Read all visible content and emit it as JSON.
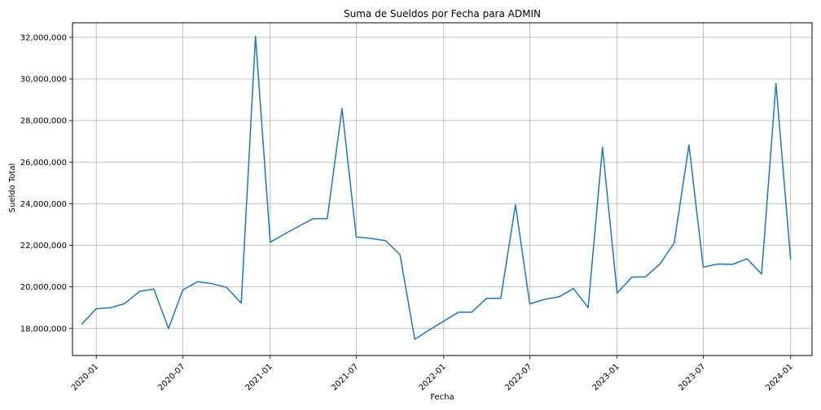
{
  "chart_data": {
    "type": "line",
    "title": "Suma de Sueldos por Fecha para ADMIN",
    "xlabel": "Fecha",
    "ylabel": "Sueldo Total",
    "ylim": [
      16700000,
      32700000
    ],
    "xlim": [
      "2019-11-12",
      "2024-02-15"
    ],
    "grid": true,
    "line_color": "#1f77b4",
    "x_ticks": [
      {
        "date": "2020-01-01",
        "label": "2020-01"
      },
      {
        "date": "2020-07-01",
        "label": "2020-07"
      },
      {
        "date": "2021-01-01",
        "label": "2021-01"
      },
      {
        "date": "2021-07-01",
        "label": "2021-07"
      },
      {
        "date": "2022-01-01",
        "label": "2022-01"
      },
      {
        "date": "2022-07-01",
        "label": "2022-07"
      },
      {
        "date": "2023-01-01",
        "label": "2023-01"
      },
      {
        "date": "2023-07-01",
        "label": "2023-07"
      },
      {
        "date": "2024-01-01",
        "label": "2024-01"
      }
    ],
    "y_ticks": [
      {
        "value": 18000000,
        "label": "18,000,000"
      },
      {
        "value": 20000000,
        "label": "20,000,000"
      },
      {
        "value": 22000000,
        "label": "22,000,000"
      },
      {
        "value": 24000000,
        "label": "24,000,000"
      },
      {
        "value": 26000000,
        "label": "26,000,000"
      },
      {
        "value": 28000000,
        "label": "28,000,000"
      },
      {
        "value": 30000000,
        "label": "30,000,000"
      },
      {
        "value": 32000000,
        "label": "32,000,000"
      }
    ],
    "series": [
      {
        "x": [
          "2019-12-01",
          "2020-01-01",
          "2020-02-01",
          "2020-03-01",
          "2020-04-01",
          "2020-05-01",
          "2020-06-01",
          "2020-07-01",
          "2020-08-01",
          "2020-09-01",
          "2020-10-01",
          "2020-11-01",
          "2020-12-01",
          "2021-01-01",
          "2021-02-01",
          "2021-03-01",
          "2021-04-01",
          "2021-05-01",
          "2021-06-01",
          "2021-07-01",
          "2021-08-01",
          "2021-09-01",
          "2021-10-01",
          "2021-11-01",
          "2021-12-01",
          "2022-01-01",
          "2022-02-01",
          "2022-03-01",
          "2022-04-01",
          "2022-05-01",
          "2022-06-01",
          "2022-07-01",
          "2022-08-01",
          "2022-09-01",
          "2022-10-01",
          "2022-11-01",
          "2022-12-01",
          "2023-01-01",
          "2023-02-01",
          "2023-03-01",
          "2023-04-01",
          "2023-05-01",
          "2023-06-01",
          "2023-07-01",
          "2023-08-01",
          "2023-09-01",
          "2023-10-01",
          "2023-11-01",
          "2023-12-01",
          "2024-01-01"
        ],
        "y": [
          18200000,
          18950000,
          19000000,
          19200000,
          19780000,
          19900000,
          18000000,
          19850000,
          20250000,
          20150000,
          19980000,
          19220000,
          32050000,
          22150000,
          22550000,
          22900000,
          23280000,
          23280000,
          28580000,
          22400000,
          22330000,
          22220000,
          21550000,
          17480000,
          17920000,
          18350000,
          18780000,
          18780000,
          19450000,
          19450000,
          23950000,
          19180000,
          19400000,
          19530000,
          19920000,
          19000000,
          26720000,
          19700000,
          20470000,
          20480000,
          21100000,
          22120000,
          26830000,
          20950000,
          21100000,
          21080000,
          21350000,
          20620000,
          29780000,
          21310000
        ]
      }
    ]
  }
}
